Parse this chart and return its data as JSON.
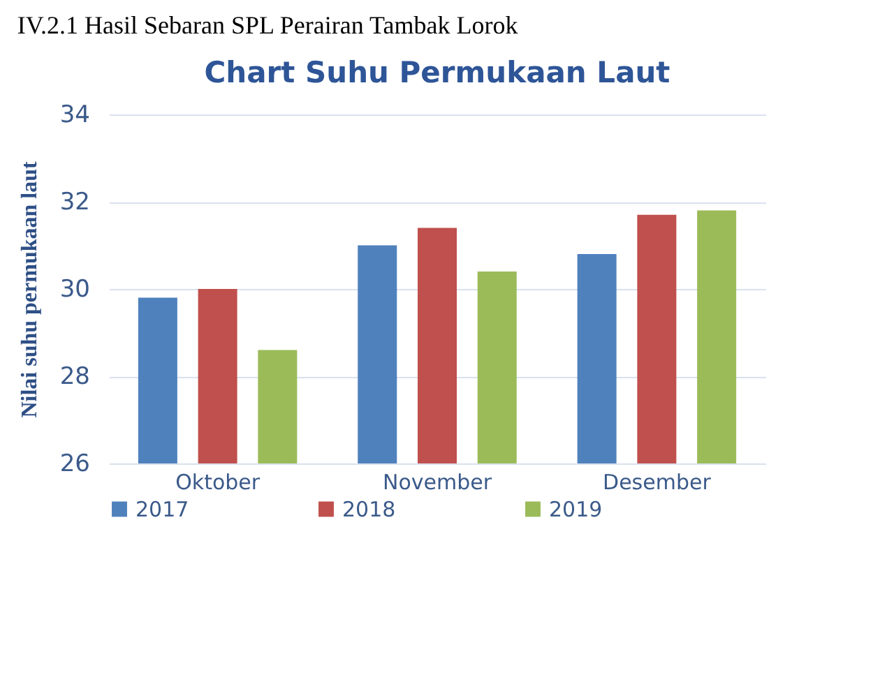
{
  "chart_data": {
    "type": "bar",
    "title": "Chart Suhu Permukaan Laut",
    "ylabel": "Nilai suhu permukaan laut",
    "annotations": [
      "IV.2.1     Hasil Sebaran SPL Perairan Tambak Lorok"
    ],
    "categories": [
      "Oktober",
      "November",
      "Desember"
    ],
    "series": [
      {
        "name": "2017",
        "color": "#4f81bd",
        "values": [
          29.8,
          31.0,
          30.8
        ]
      },
      {
        "name": "2018",
        "color": "#c0504d",
        "values": [
          30.0,
          31.4,
          31.7
        ]
      },
      {
        "name": "2019",
        "color": "#9bbb59",
        "values": [
          28.6,
          30.4,
          31.8
        ]
      }
    ],
    "ylim": [
      26,
      34
    ],
    "yticks": [
      26,
      28,
      30,
      32,
      34
    ],
    "grid": "y",
    "legend": "bottom"
  }
}
